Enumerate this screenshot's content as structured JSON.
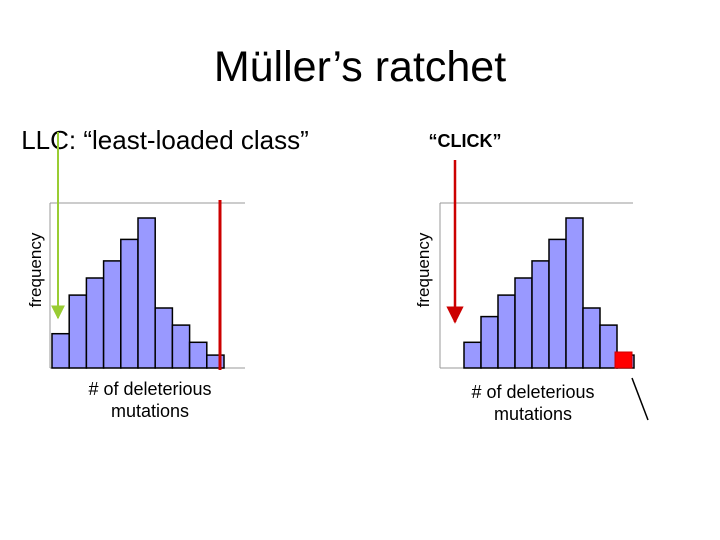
{
  "slide": {
    "title": "Müller’s ratchet",
    "llc_label": "LLC: “least-loaded class”",
    "click_label": "“CLICK”"
  },
  "panels": [
    {
      "id": "left",
      "ylabel": "frequency",
      "xlabel": "# of deleterious mutations",
      "bars": [
        8,
        17,
        21,
        25,
        30,
        35,
        14,
        10,
        6,
        3
      ],
      "ymax": 35
    },
    {
      "id": "right",
      "ylabel": "frequency",
      "xlabel": "# of deleterious mutations",
      "bars": [
        6,
        12,
        17,
        21,
        25,
        30,
        35,
        14,
        10,
        3
      ],
      "ymax": 35
    }
  ],
  "colors": {
    "bar_fill": "#9999ff",
    "bar_stroke": "#000000",
    "lost_class": "#ff0000",
    "click_line": "#cc0000",
    "llc_arrow": "#99cc33",
    "axis": "#999999"
  }
}
